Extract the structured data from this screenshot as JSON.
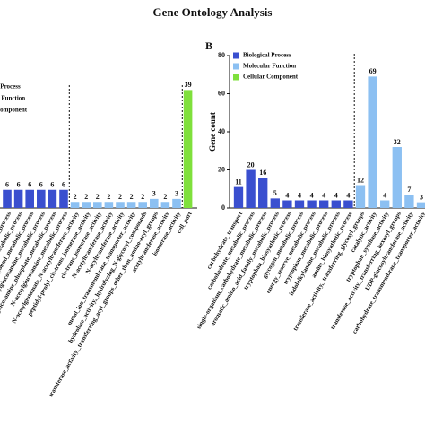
{
  "title": "Gene Ontology Analysis",
  "chart_data": [
    {
      "type": "bar",
      "categories": [
        "aminoglycan_metabolic_process",
        "amino_sugar_metabolic_process",
        "glucosamine-containing_compound_metabolic_process",
        "UDP-N-acetylglucosamine_metabolic_process",
        "glucosamine_phosphate_metabolic_process",
        "N-acetylglucosamine_metabolic_process",
        "N-acetylglutamate_N-acetyltransferase_activity",
        "peptidyl-prolyl_cis-trans_isomerase_activity",
        "cis-trans_isomerase_activity",
        "N-acetyltransferase_activity",
        "N-acyltransferase_activity",
        "metal_ion_transmembrane_transporter_activity",
        "hydrolase_activity,_hydrolyzing_N-glycosyl_compounds",
        "transferase_activity,_transferring_acyl_groups_other_than_amino-acyl_groups",
        "acetyltransferase_activity",
        "isomerase_activity",
        "cell_part"
      ],
      "series": [
        {
          "name": "Biological Process",
          "color": "#3a4fcf",
          "values": [
            6,
            6,
            6,
            6,
            6,
            6,
            null,
            null,
            null,
            null,
            null,
            null,
            null,
            null,
            null,
            null,
            null
          ]
        },
        {
          "name": "Molecular Function",
          "color": "#8cc0f2",
          "values": [
            null,
            null,
            null,
            null,
            null,
            null,
            2,
            2,
            2,
            2,
            2,
            2,
            2,
            3,
            2,
            3,
            null
          ]
        },
        {
          "name": "Cellular Component",
          "color": "#7fe03c",
          "values": [
            null,
            null,
            null,
            null,
            null,
            null,
            null,
            null,
            null,
            null,
            null,
            null,
            null,
            null,
            null,
            null,
            39
          ]
        }
      ],
      "ylim": [
        0,
        40
      ]
    },
    {
      "type": "bar",
      "panel": "B",
      "y_label": "Gene count",
      "categories": [
        "carbohydrate_transport",
        "carbohydrate_metabolic_process",
        "single-organism_carbohydrate_metabolic_process",
        "aromatic_amino_acid_family_metabolic_process",
        "tryptophan_biosynthetic_process",
        "glycogen_metabolic_process",
        "energy_reserve_metabolic_process",
        "tryptophan_metabolic_process",
        "indolalkylamine_metabolic_process",
        "amine_biosynthetic_process",
        "transferase_activity,_transferring_glycosyl_groups",
        "catalytic_activity",
        "tryptophan_synthase_activity",
        "transferase_activity,_transferring_hexosyl_groups",
        "UDP-glucosyltransferase_activity",
        "carbohydrate_transmembrane_transporter_activity"
      ],
      "series": [
        {
          "name": "Biological Process",
          "color": "#3a4fcf",
          "values": [
            11,
            20,
            16,
            5,
            4,
            4,
            4,
            4,
            4,
            4,
            null,
            null,
            null,
            null,
            null,
            null
          ]
        },
        {
          "name": "Molecular Function",
          "color": "#8cc0f2",
          "values": [
            null,
            null,
            null,
            null,
            null,
            null,
            null,
            null,
            null,
            null,
            12,
            69,
            4,
            32,
            7,
            3
          ]
        },
        {
          "name": "Cellular Component",
          "color": "#7fe03c",
          "values": [
            null,
            null,
            null,
            null,
            null,
            null,
            null,
            null,
            null,
            null,
            null,
            null,
            null,
            null,
            null,
            null
          ]
        }
      ],
      "ylim": [
        0,
        80
      ],
      "yticks": [
        0,
        20,
        40,
        60,
        80
      ]
    }
  ]
}
